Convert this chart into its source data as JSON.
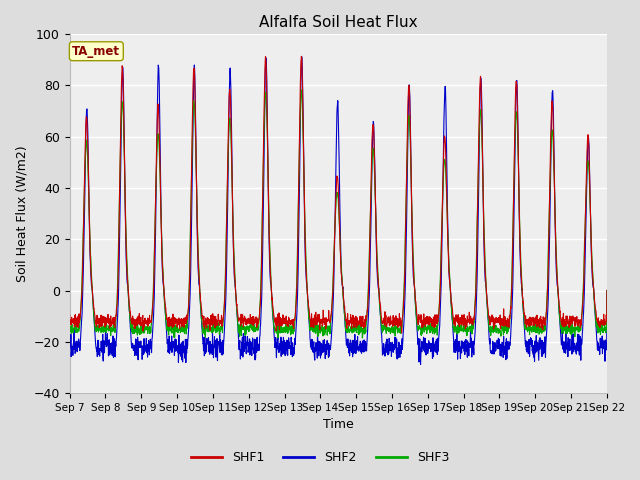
{
  "title": "Alfalfa Soil Heat Flux",
  "xlabel": "Time",
  "ylabel": "Soil Heat Flux (W/m2)",
  "ylim": [
    -40,
    100
  ],
  "n_days": 15,
  "x_tick_labels": [
    "Sep 7",
    "Sep 8",
    "Sep 9",
    "Sep 10",
    "Sep 11",
    "Sep 12",
    "Sep 13",
    "Sep 14",
    "Sep 15",
    "Sep 16",
    "Sep 17",
    "Sep 18",
    "Sep 19",
    "Sep 20",
    "Sep 21",
    "Sep 22"
  ],
  "colors": {
    "SHF1": "#cc0000",
    "SHF2": "#0000cc",
    "SHF3": "#00aa00"
  },
  "tag_label": "TA_met",
  "tag_facecolor": "#ffffcc",
  "tag_edgecolor": "#999900",
  "tag_textcolor": "#880000",
  "fig_facecolor": "#dddddd",
  "ax_facecolor": "#eeeeee",
  "grid_color": "#ffffff",
  "peak_amplitudes": [
    68,
    87,
    72,
    87,
    79,
    91,
    91,
    45,
    65,
    80,
    60,
    83,
    82,
    74,
    60
  ],
  "peak_amplitudes_shf2": [
    71,
    87,
    87,
    87,
    86,
    91,
    91,
    74,
    66,
    80,
    80,
    83,
    82,
    78,
    60
  ],
  "night_base_shf1": -12,
  "night_base_shf2": -22,
  "night_base_shf3": -15,
  "spd": 144
}
